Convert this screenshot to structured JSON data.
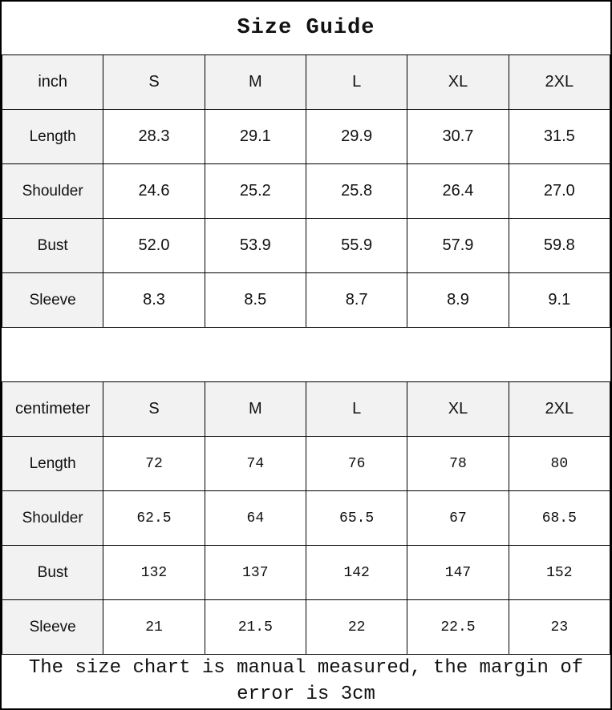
{
  "title": "Size Guide",
  "colors": {
    "header_bg": "#f2f2f2",
    "border": "#000000",
    "text": "#111111"
  },
  "tables": [
    {
      "unit": "inch",
      "sizes": [
        "S",
        "M",
        "L",
        "XL",
        "2XL"
      ],
      "rows": [
        {
          "label": "Length",
          "values": [
            "28.3",
            "29.1",
            "29.9",
            "30.7",
            "31.5"
          ]
        },
        {
          "label": "Shoulder",
          "values": [
            "24.6",
            "25.2",
            "25.8",
            "26.4",
            "27.0"
          ]
        },
        {
          "label": "Bust",
          "values": [
            "52.0",
            "53.9",
            "55.9",
            "57.9",
            "59.8"
          ]
        },
        {
          "label": "Sleeve",
          "values": [
            "8.3",
            "8.5",
            "8.7",
            "8.9",
            "9.1"
          ]
        }
      ]
    },
    {
      "unit": "centimeter",
      "sizes": [
        "S",
        "M",
        "L",
        "XL",
        "2XL"
      ],
      "rows": [
        {
          "label": "Length",
          "values": [
            "72",
            "74",
            "76",
            "78",
            "80"
          ]
        },
        {
          "label": "Shoulder",
          "values": [
            "62.5",
            "64",
            "65.5",
            "67",
            "68.5"
          ]
        },
        {
          "label": "Bust",
          "values": [
            "132",
            "137",
            "142",
            "147",
            "152"
          ]
        },
        {
          "label": "Sleeve",
          "values": [
            "21",
            "21.5",
            "22",
            "22.5",
            "23"
          ]
        }
      ]
    }
  ],
  "footer": "The size chart is manual measured, the margin of error is 3cm"
}
